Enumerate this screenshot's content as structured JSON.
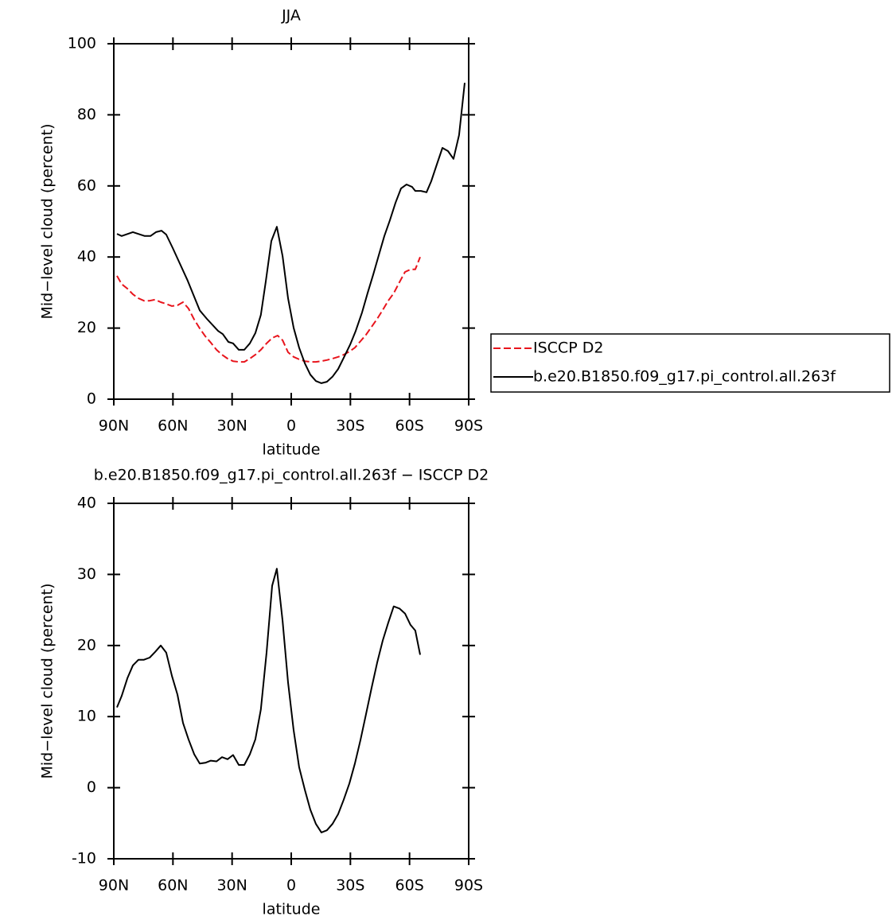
{
  "chart_data": [
    {
      "type": "line",
      "title": "JJA",
      "ylabel": "Mid−level cloud (percent)",
      "xlabel": "latitude",
      "xlim": [
        90,
        -90
      ],
      "xticks": [
        {
          "value": 90,
          "label": "90N"
        },
        {
          "value": 60,
          "label": "60N"
        },
        {
          "value": 30,
          "label": "30N"
        },
        0,
        {
          "value": -30,
          "label": "30S"
        },
        {
          "value": -60,
          "label": "60S"
        },
        {
          "value": -90,
          "label": "90S"
        }
      ],
      "ylim": [
        0,
        100
      ],
      "yticks": [
        0,
        20,
        40,
        60,
        80,
        100
      ],
      "legend": "right",
      "series": [
        {
          "name": "ISCCP D2",
          "color": "#e8141c",
          "dashed": true,
          "x": [
            88.4,
            86,
            83.1,
            80.3,
            77.5,
            74.7,
            71.8,
            69,
            66.2,
            63.4,
            60.5,
            57.7,
            54.9,
            52.1,
            49.2,
            46.4,
            43.6,
            40.8,
            37.9,
            35.1,
            32.3,
            29.5,
            26.6,
            23.8,
            21,
            18.2,
            15.4,
            12.5,
            9.7,
            6.9,
            4.4,
            1.6,
            -1.2,
            -4,
            -6.9,
            -9.7,
            -12.5,
            -15.3,
            -18.1,
            -20.9,
            -23.8,
            -26.6,
            -29.5,
            -32.3,
            -35.1,
            -37.9,
            -40.8,
            -43.6,
            -46.4,
            -49.2,
            -52,
            -54.9,
            -57.7,
            -60.5,
            -62.9,
            -65.4
          ],
          "values": [
            34.7,
            32.4,
            31.1,
            29.5,
            28.4,
            27.7,
            27.7,
            28,
            27.3,
            26.8,
            26.2,
            26.4,
            27.3,
            25.5,
            22.4,
            19.9,
            17.7,
            15.9,
            13.9,
            12.5,
            11.4,
            10.7,
            10.5,
            10.5,
            11.4,
            12.5,
            13.9,
            15.7,
            17.2,
            17.9,
            16.6,
            13.2,
            11.9,
            11.2,
            10.7,
            10.5,
            10.5,
            10.7,
            11,
            11.4,
            11.9,
            12.5,
            13.4,
            14.5,
            16.3,
            18.1,
            20.4,
            22.6,
            25.1,
            27.7,
            29.8,
            32.9,
            35.8,
            36.5,
            36.5,
            40
          ]
        },
        {
          "name": "b.e20.B1850.f09_g17.pi_control.all.263f",
          "color": "#000000",
          "dashed": false,
          "x": [
            88.4,
            86,
            80.3,
            74.3,
            71.4,
            68.6,
            65.8,
            63.4,
            60.1,
            52.5,
            46.4,
            42.8,
            37.1,
            34.7,
            31.9,
            29.5,
            26.6,
            23.8,
            21,
            18.2,
            15.4,
            12.9,
            10.1,
            7.3,
            4.4,
            1.6,
            -1.2,
            -4,
            -6.9,
            -9.7,
            -12.5,
            -15.3,
            -18.1,
            -20.9,
            -23.8,
            -26.6,
            -29.9,
            -32.7,
            -35.9,
            -38.7,
            -41.6,
            -44.4,
            -47.2,
            -50,
            -52.9,
            -55.7,
            -58.5,
            -61.3,
            -62.9,
            -65.8,
            -68.6,
            -71,
            -73.8,
            -76.7,
            -79.5,
            -82.3,
            -85.1,
            -88
          ],
          "values": [
            46.5,
            45.9,
            47,
            45.9,
            45.9,
            47,
            47.4,
            46.3,
            42.5,
            33.3,
            25,
            22.6,
            19.2,
            18.3,
            16.1,
            15.7,
            13.9,
            13.9,
            15.7,
            18.6,
            23.7,
            33.1,
            44.5,
            48.5,
            40.3,
            28.4,
            20.1,
            14.5,
            10.1,
            6.9,
            5.1,
            4.5,
            4.9,
            6.3,
            8.5,
            11.6,
            15.4,
            19.2,
            24.4,
            29.8,
            35.1,
            40.5,
            45.9,
            50.3,
            55.3,
            59.3,
            60.4,
            59.7,
            58.6,
            58.6,
            58.2,
            61.3,
            66,
            70.7,
            69.8,
            67.6,
            74.3,
            89
          ]
        }
      ]
    },
    {
      "type": "line",
      "title": "b.e20.B1850.f09_g17.pi_control.all.263f − ISCCP D2",
      "ylabel": "Mid−level cloud (percent)",
      "xlabel": "latitude",
      "xlim": [
        90,
        -90
      ],
      "xticks": [
        {
          "value": 90,
          "label": "90N"
        },
        {
          "value": 60,
          "label": "60N"
        },
        {
          "value": 30,
          "label": "30N"
        },
        0,
        {
          "value": -30,
          "label": "30S"
        },
        {
          "value": -60,
          "label": "60S"
        },
        {
          "value": -90,
          "label": "90S"
        }
      ],
      "ylim": [
        -10,
        40
      ],
      "yticks": [
        -10,
        0,
        10,
        20,
        30,
        40
      ],
      "series": [
        {
          "color": "#000000",
          "dashed": false,
          "x": [
            88.4,
            86,
            83.1,
            80.3,
            77.5,
            74.7,
            71.8,
            69,
            66.2,
            63.4,
            60.5,
            57.7,
            54.9,
            52.1,
            49.2,
            46.4,
            43.6,
            40.8,
            37.9,
            35.1,
            32.3,
            29.5,
            26.6,
            23.8,
            21,
            18.2,
            15.4,
            12.5,
            9.7,
            7.3,
            4.4,
            1.6,
            -1.2,
            -4,
            -6.9,
            -9.7,
            -12.5,
            -15.3,
            -18.1,
            -20.9,
            -23.8,
            -26.6,
            -29.5,
            -32.3,
            -35.1,
            -37.9,
            -40.8,
            -43.6,
            -46.4,
            -49.2,
            -52,
            -54.9,
            -57.7,
            -60.5,
            -62.9,
            -65.4
          ],
          "values": [
            11.3,
            12.9,
            15.4,
            17.2,
            18,
            18,
            18.3,
            19.1,
            20,
            19,
            15.7,
            13.1,
            9.1,
            6.8,
            4.7,
            3.4,
            3.5,
            3.8,
            3.7,
            4.3,
            4,
            4.6,
            3.2,
            3.2,
            4.7,
            6.8,
            11,
            19,
            28.4,
            30.8,
            23.5,
            14.8,
            8.1,
            2.9,
            -0.3,
            -3.1,
            -5.1,
            -6.3,
            -6,
            -5.1,
            -3.7,
            -1.7,
            0.6,
            3.4,
            6.7,
            10.3,
            14.1,
            17.6,
            20.7,
            23.2,
            25.5,
            25.2,
            24.5,
            22.9,
            22.1,
            18.7
          ]
        }
      ]
    }
  ]
}
